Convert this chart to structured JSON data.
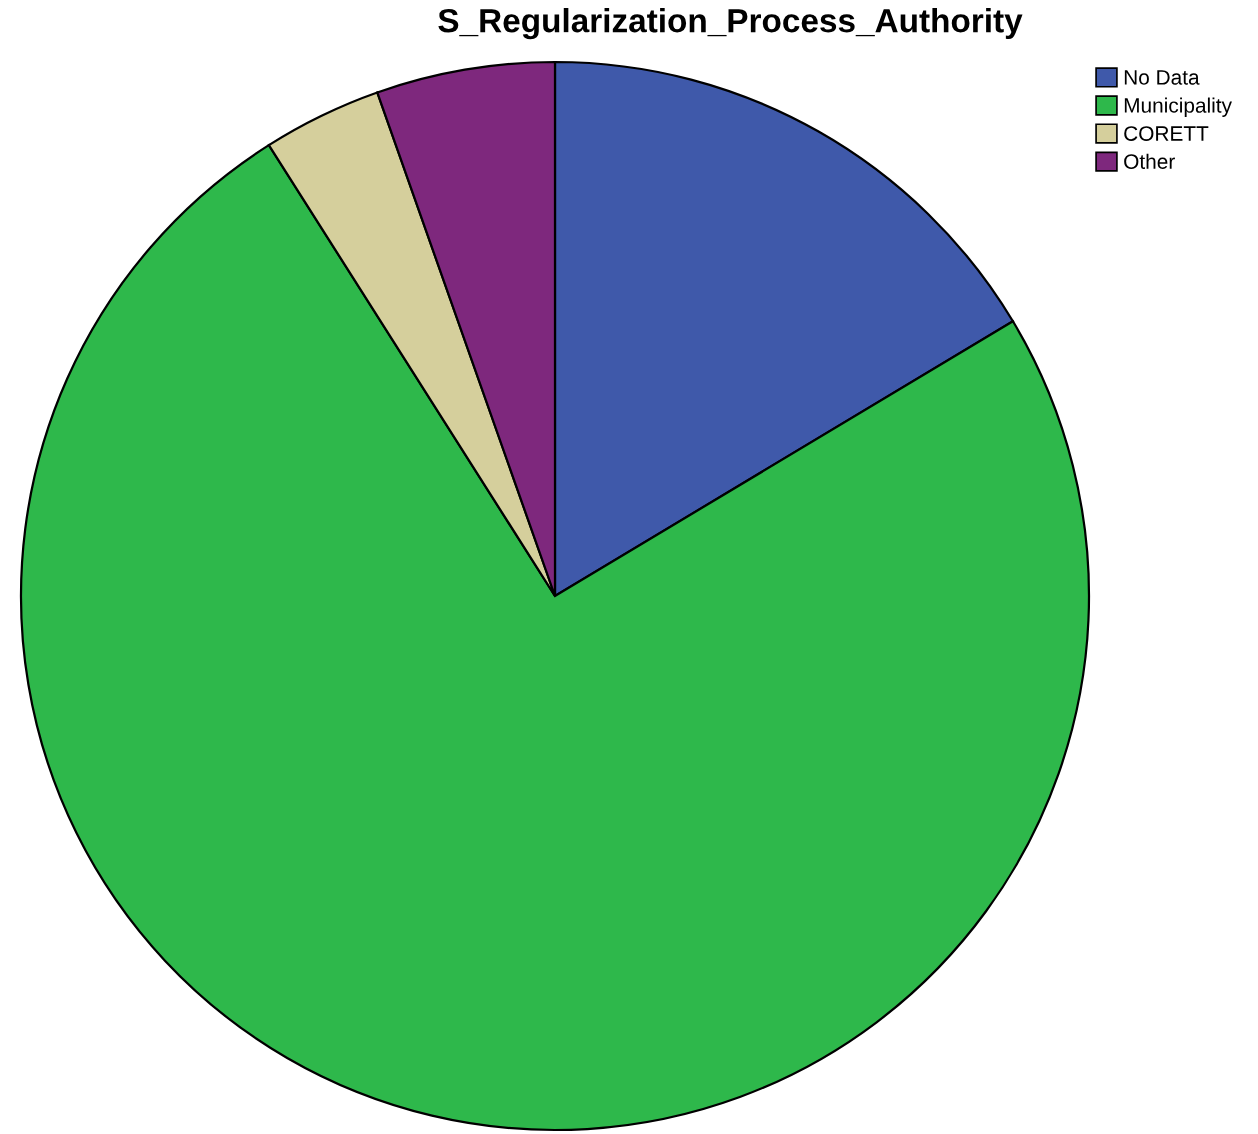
{
  "chart_data": {
    "type": "pie",
    "title": "S_Regularization_Process_Authority",
    "categories": [
      "No Data",
      "Municipality",
      "CORETT",
      "Other"
    ],
    "values": [
      16.4,
      74.6,
      3.6,
      5.4
    ],
    "colors": [
      "#3f59aa",
      "#2eb84b",
      "#d5cf9c",
      "#7e287d"
    ],
    "legend": "top right"
  }
}
